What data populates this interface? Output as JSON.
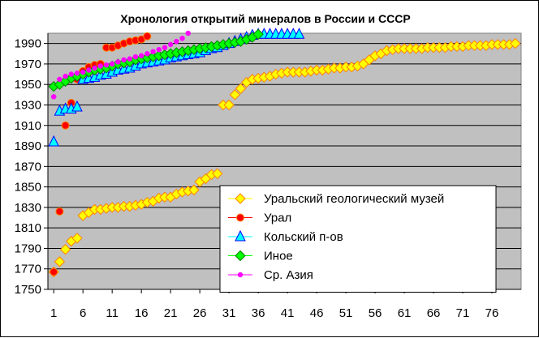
{
  "chart_data": {
    "type": "scatter",
    "title": "Хронология открытий минералов в России и СССР",
    "xlabel": "",
    "ylabel": "",
    "xlim": [
      0,
      81
    ],
    "ylim": [
      1750,
      2000
    ],
    "yticks": [
      1750,
      1770,
      1790,
      1810,
      1830,
      1850,
      1870,
      1890,
      1910,
      1930,
      1950,
      1970,
      1990
    ],
    "xticks": [
      1,
      6,
      11,
      16,
      21,
      26,
      31,
      36,
      41,
      46,
      51,
      56,
      61,
      66,
      71,
      76
    ],
    "grid": "horizontal",
    "plot_background": "#c0c0c0",
    "legend_position": "bottom-center",
    "series": [
      {
        "name": "Уральский геологический музей",
        "marker": "diamond",
        "color": "#ffff00",
        "stroke": "#ff8000",
        "x": [
          1,
          2,
          3,
          4,
          5,
          6,
          7,
          8,
          9,
          10,
          11,
          12,
          13,
          14,
          15,
          16,
          17,
          18,
          19,
          20,
          21,
          22,
          23,
          24,
          25,
          26,
          27,
          28,
          29,
          30,
          31,
          32,
          33,
          34,
          35,
          36,
          37,
          38,
          39,
          40,
          41,
          42,
          43,
          44,
          45,
          46,
          47,
          48,
          49,
          50,
          51,
          52,
          53,
          54,
          55,
          56,
          57,
          58,
          59,
          60,
          61,
          62,
          63,
          64,
          65,
          66,
          67,
          68,
          69,
          70,
          71,
          72,
          73,
          74,
          75,
          76,
          77,
          78,
          79,
          80
        ],
        "y": [
          1767,
          1777,
          1789,
          1797,
          1800,
          1822,
          1825,
          1828,
          1828,
          1829,
          1830,
          1830,
          1831,
          1831,
          1832,
          1833,
          1835,
          1836,
          1839,
          1840,
          1840,
          1843,
          1845,
          1846,
          1847,
          1855,
          1858,
          1862,
          1863,
          1930,
          1930,
          1940,
          1946,
          1952,
          1955,
          1956,
          1957,
          1958,
          1960,
          1961,
          1962,
          1962,
          1962,
          1962,
          1963,
          1964,
          1964,
          1965,
          1966,
          1966,
          1967,
          1967,
          1968,
          1970,
          1974,
          1978,
          1980,
          1983,
          1984,
          1985,
          1985,
          1985,
          1985,
          1985,
          1986,
          1986,
          1986,
          1986,
          1987,
          1987,
          1987,
          1988,
          1988,
          1988,
          1988,
          1989,
          1989,
          1989,
          1989,
          1990
        ]
      },
      {
        "name": "Урал",
        "marker": "circle",
        "color": "#ff0000",
        "stroke": "#ff8000",
        "x": [
          1,
          2,
          3,
          4,
          5,
          6,
          7,
          8,
          9,
          10,
          11,
          12,
          13,
          14,
          15,
          16,
          17
        ],
        "y": [
          1767,
          1826,
          1910,
          1932,
          1955,
          1963,
          1967,
          1969,
          1970,
          1986,
          1986,
          1988,
          1990,
          1992,
          1993,
          1994,
          1997
        ]
      },
      {
        "name": "Кольский п-ов",
        "marker": "triangle",
        "color": "#00ffff",
        "stroke": "#0000ff",
        "x": [
          1,
          2,
          3,
          4,
          5,
          6,
          7,
          8,
          9,
          10,
          11,
          12,
          13,
          14,
          15,
          16,
          17,
          18,
          19,
          20,
          21,
          22,
          23,
          24,
          25,
          26,
          27,
          28,
          29,
          30,
          31,
          32,
          33,
          34,
          35,
          36,
          37,
          38,
          39,
          40,
          41,
          42,
          43
        ],
        "y": [
          1894,
          1924,
          1926,
          1926,
          1928,
          1955,
          1956,
          1957,
          1959,
          1960,
          1962,
          1964,
          1965,
          1966,
          1968,
          1970,
          1971,
          1972,
          1973,
          1974,
          1976,
          1977,
          1978,
          1979,
          1980,
          1981,
          1983,
          1985,
          1986,
          1988,
          1990,
          1992,
          1994,
          1996,
          1998,
          1999,
          1999,
          1999,
          1999,
          1999,
          1999,
          1999,
          1999
        ]
      },
      {
        "name": "Иное",
        "marker": "diamond",
        "color": "#00ff00",
        "stroke": "#008000",
        "x": [
          1,
          2,
          3,
          4,
          5,
          6,
          7,
          8,
          9,
          10,
          11,
          12,
          13,
          14,
          15,
          16,
          17,
          18,
          19,
          20,
          21,
          22,
          23,
          24,
          25,
          26,
          27,
          28,
          29,
          30,
          31,
          32,
          33,
          34,
          35,
          36
        ],
        "y": [
          1948,
          1950,
          1953,
          1956,
          1958,
          1960,
          1962,
          1964,
          1965,
          1966,
          1968,
          1970,
          1971,
          1972,
          1974,
          1975,
          1976,
          1977,
          1978,
          1979,
          1980,
          1981,
          1982,
          1983,
          1984,
          1985,
          1986,
          1987,
          1988,
          1989,
          1990,
          1991,
          1992,
          1994,
          1996,
          1999
        ]
      },
      {
        "name": "Ср. Азия",
        "marker": "dot",
        "color": "#ff00ff",
        "stroke": "#ff00ff",
        "x": [
          1,
          2,
          3,
          4,
          5,
          6,
          7,
          8,
          9,
          10,
          11,
          12,
          13,
          14,
          15,
          16,
          17,
          18,
          19,
          20,
          21,
          22,
          23,
          24
        ],
        "y": [
          1938,
          1955,
          1958,
          1960,
          1961,
          1962,
          1964,
          1966,
          1968,
          1969,
          1970,
          1972,
          1974,
          1975,
          1977,
          1978,
          1980,
          1982,
          1984,
          1986,
          1989,
          1992,
          1995,
          2000
        ]
      }
    ]
  }
}
